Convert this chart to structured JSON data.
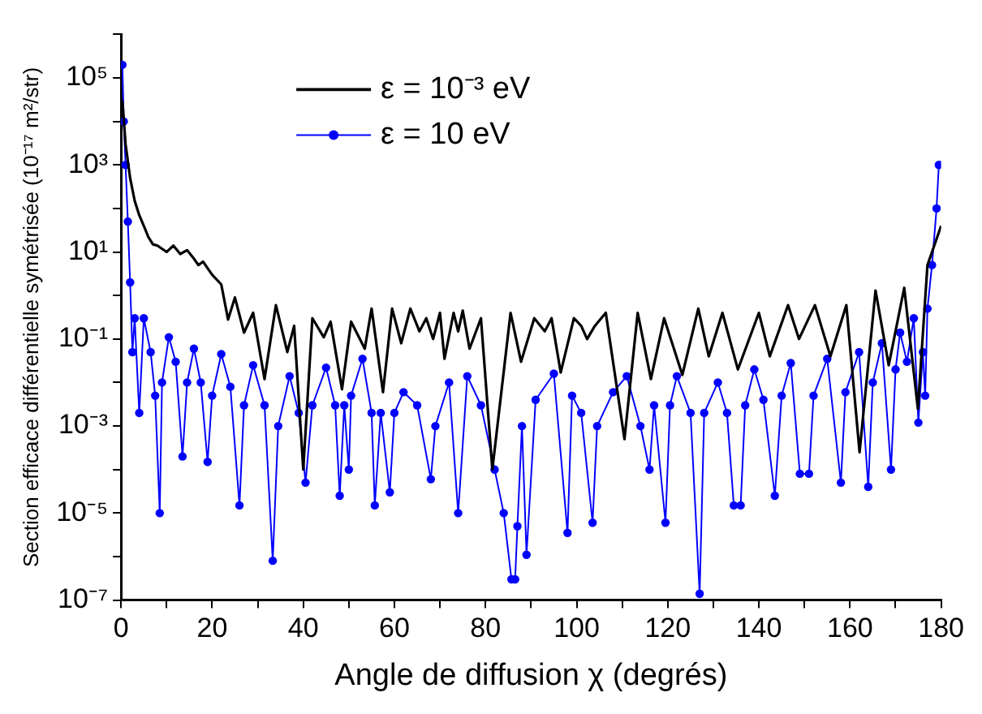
{
  "chart_data": {
    "type": "line",
    "xlabel": "Angle de diffusion χ (degrés)",
    "ylabel": "Section efficace différentielle symétrisée (10⁻¹⁷ m²/str)",
    "log": "y",
    "grid": false,
    "legend": "top left",
    "xlim": [
      0,
      180
    ],
    "xticks": [
      0,
      {
        "value": 10,
        "label": null
      },
      20,
      {
        "value": 30,
        "label": null
      },
      40,
      {
        "value": 50,
        "label": null
      },
      60,
      {
        "value": 70,
        "label": null
      },
      80,
      {
        "value": 90,
        "label": null
      },
      100,
      {
        "value": 110,
        "label": null
      },
      120,
      {
        "value": 130,
        "label": null
      },
      140,
      {
        "value": 150,
        "label": null
      },
      160,
      {
        "value": 170,
        "label": null
      },
      180
    ],
    "ylim": [
      1e-07,
      1000000.0
    ],
    "yticks": [
      {
        "value": 1e-07,
        "label": "10⁻⁷"
      },
      {
        "value": 1e-06,
        "label": null
      },
      {
        "value": 1e-05,
        "label": "10⁻⁵"
      },
      {
        "value": 0.0001,
        "label": null
      },
      {
        "value": 0.001,
        "label": "10⁻³"
      },
      {
        "value": 0.01,
        "label": null
      },
      {
        "value": 0.1,
        "label": "10⁻¹"
      },
      {
        "value": 1,
        "label": null
      },
      {
        "value": 10,
        "label": "10¹"
      },
      {
        "value": 100,
        "label": null
      },
      {
        "value": 1000,
        "label": "10³"
      },
      {
        "value": 10000,
        "label": null
      },
      {
        "value": 100000,
        "label": "10⁵"
      },
      {
        "value": 1000000,
        "label": null
      }
    ],
    "series": [
      {
        "name": "ε = 10⁻³ eV",
        "color": "#000000",
        "marker": "none",
        "x": [
          0.3,
          1,
          2,
          3,
          4,
          5,
          6,
          7,
          8,
          10,
          11.5,
          13,
          14.5,
          16,
          17,
          18,
          20,
          22,
          23.5,
          25,
          27,
          29,
          31.5,
          34,
          36.5,
          38,
          40,
          42,
          44.5,
          46,
          48.5,
          50.5,
          53.5,
          55,
          57.5,
          59.5,
          61.5,
          63.5,
          65.5,
          67,
          68.5,
          70,
          71,
          73,
          74,
          75,
          76.5,
          79,
          81.5,
          85.5,
          87.8,
          90.7,
          93,
          94.5,
          96.5,
          99.4,
          101,
          102.3,
          104,
          106.4,
          110.5,
          113.4,
          116.3,
          119.2,
          123.2,
          126.7,
          129,
          132,
          135.4,
          140,
          142.4,
          146.4,
          148.8,
          152.3,
          155.7,
          159.2,
          162.1,
          165.6,
          168.5,
          171.9,
          174.9,
          177,
          179,
          180
        ],
        "values": [
          30000,
          3000,
          500,
          150,
          70,
          40,
          22,
          15,
          14,
          10,
          14,
          9,
          11,
          7,
          5,
          6,
          3,
          1.8,
          0.28,
          0.9,
          0.14,
          0.4,
          0.012,
          0.6,
          0.05,
          0.2,
          0.0001,
          0.3,
          0.11,
          0.25,
          0.007,
          0.25,
          0.06,
          0.5,
          0.006,
          0.5,
          0.08,
          0.5,
          0.15,
          0.3,
          0.1,
          0.4,
          0.035,
          0.4,
          0.15,
          0.45,
          0.06,
          0.3,
          0.0001,
          0.4,
          0.03,
          0.3,
          0.15,
          0.3,
          0.017,
          0.3,
          0.2,
          0.1,
          0.2,
          0.4,
          0.0005,
          0.4,
          0.012,
          0.3,
          0.015,
          0.5,
          0.04,
          0.4,
          0.02,
          0.4,
          0.04,
          0.6,
          0.1,
          0.6,
          0.04,
          0.6,
          0.00025,
          1.3,
          0.025,
          1.5,
          0.0025,
          5,
          20,
          40
        ]
      },
      {
        "name": "ε = 10 eV",
        "color": "#0000ff",
        "marker": "circle",
        "x": [
          0.3,
          0.6,
          1,
          1.5,
          2,
          2.5,
          3,
          4,
          5,
          6.5,
          7.5,
          8.5,
          9,
          10.5,
          12,
          13.5,
          14.5,
          16,
          17.5,
          19,
          20,
          22,
          24,
          26,
          27,
          29,
          31.5,
          33.3,
          34.5,
          37,
          39,
          40.5,
          42,
          45,
          47,
          48,
          49,
          50,
          50.5,
          53,
          55,
          55.7,
          57,
          59,
          60,
          62,
          65,
          68,
          69,
          72,
          74,
          76,
          79,
          82,
          84,
          85.7,
          86.5,
          87,
          88,
          89,
          91,
          95,
          98,
          99,
          101,
          103.5,
          104.5,
          108,
          111,
          114,
          116,
          117,
          119.5,
          120.5,
          122,
          125,
          127,
          128,
          131,
          133,
          134.5,
          136,
          137,
          139,
          141,
          143.5,
          145,
          147,
          149,
          151,
          152,
          155,
          158,
          159,
          162,
          164,
          165,
          167,
          169,
          170,
          171,
          172.5,
          174,
          175,
          176,
          176.5,
          177,
          178,
          179,
          179.5
        ],
        "values": [
          200000,
          10000,
          1000,
          50,
          2,
          0.05,
          0.3,
          0.002,
          0.3,
          0.05,
          0.005,
          1e-05,
          0.01,
          0.11,
          0.03,
          0.0002,
          0.01,
          0.06,
          0.01,
          0.00015,
          0.005,
          0.045,
          0.008,
          1.5e-05,
          0.003,
          0.025,
          0.003,
          8e-07,
          0.001,
          0.014,
          0.002,
          5e-05,
          0.003,
          0.022,
          0.003,
          2.5e-05,
          0.003,
          0.0001,
          0.005,
          0.035,
          0.002,
          1.5e-05,
          0.002,
          3e-05,
          0.002,
          0.006,
          0.003,
          6e-05,
          0.001,
          0.01,
          1e-05,
          0.014,
          0.003,
          0.0001,
          1e-05,
          3e-07,
          3e-07,
          5e-06,
          0.001,
          1.1e-06,
          0.004,
          0.016,
          3.5e-06,
          0.005,
          0.002,
          6e-06,
          0.001,
          0.006,
          0.014,
          0.001,
          0.0001,
          0.003,
          6e-06,
          0.003,
          0.014,
          0.002,
          1.4e-07,
          0.002,
          0.01,
          0.002,
          1.5e-05,
          1.5e-05,
          0.003,
          0.02,
          0.004,
          2.5e-05,
          0.005,
          0.028,
          8e-05,
          8e-05,
          0.005,
          0.035,
          5e-05,
          0.006,
          0.05,
          4e-05,
          0.01,
          0.08,
          0.0001,
          0.02,
          0.14,
          0.03,
          0.3,
          0.0012,
          0.05,
          0.005,
          0.5,
          5,
          100,
          1000
        ]
      }
    ]
  }
}
